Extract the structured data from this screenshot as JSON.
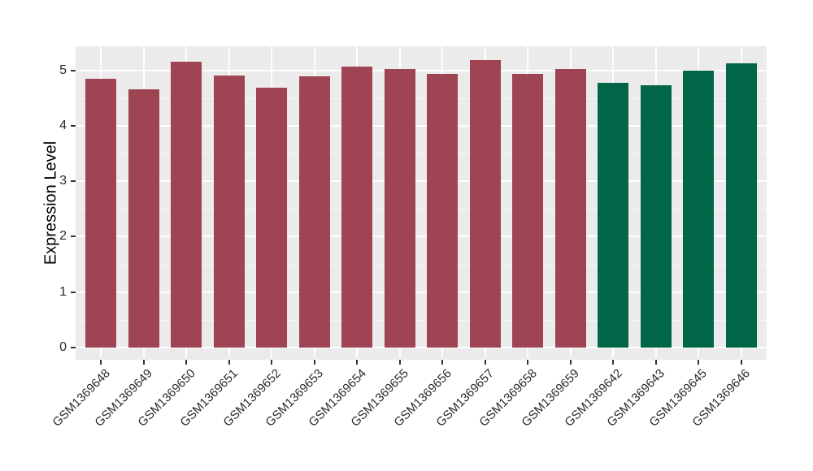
{
  "chart_data": {
    "type": "bar",
    "title": "",
    "xlabel": "",
    "ylabel": "Expression Level",
    "categories": [
      "GSM1369648",
      "GSM1369649",
      "GSM1369650",
      "GSM1369651",
      "GSM1369652",
      "GSM1369653",
      "GSM1369654",
      "GSM1369655",
      "GSM1369656",
      "GSM1369657",
      "GSM1369658",
      "GSM1369659",
      "GSM1369642",
      "GSM1369643",
      "GSM1369645",
      "GSM1369646"
    ],
    "values": [
      4.85,
      4.65,
      5.16,
      4.9,
      4.68,
      4.89,
      5.07,
      5.02,
      4.93,
      5.19,
      4.94,
      5.02,
      4.77,
      4.73,
      4.99,
      5.12
    ],
    "groups": [
      "maroon",
      "maroon",
      "maroon",
      "maroon",
      "maroon",
      "maroon",
      "maroon",
      "maroon",
      "maroon",
      "maroon",
      "maroon",
      "maroon",
      "green",
      "green",
      "green",
      "green"
    ],
    "palette": {
      "maroon": "#9E4452",
      "green": "#006647"
    },
    "yticks": [
      0,
      1,
      2,
      3,
      4,
      5
    ],
    "ylim": [
      -0.22,
      5.43
    ],
    "grid": "major+minor-horizontal, major-vertical-at-categories",
    "legend_position": "none",
    "panel_bg": "#EBEBEB",
    "grid_color": "#FFFFFF",
    "tick_color": "#333333"
  }
}
